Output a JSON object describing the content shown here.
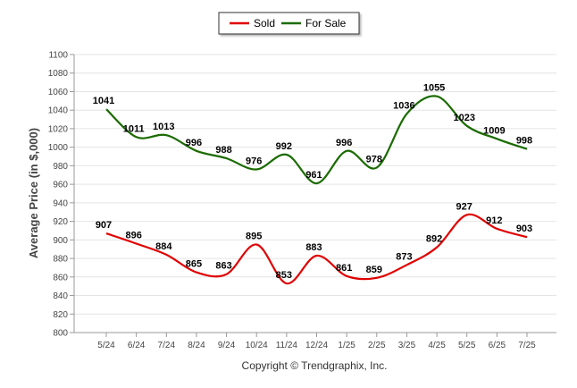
{
  "chart_data": {
    "type": "line",
    "ylabel": "Average Price (in $,000)",
    "ylim": [
      800,
      1100
    ],
    "ytick_step": 20,
    "categories": [
      "5/24",
      "6/24",
      "7/24",
      "8/24",
      "9/24",
      "10/24",
      "11/24",
      "12/24",
      "1/25",
      "2/25",
      "3/25",
      "4/25",
      "5/25",
      "6/25",
      "7/25"
    ],
    "series": [
      {
        "name": "Sold",
        "color": "#e00000",
        "values": [
          907,
          896,
          884,
          865,
          863,
          895,
          853,
          883,
          861,
          859,
          873,
          892,
          927,
          912,
          903
        ]
      },
      {
        "name": "For Sale",
        "color": "#1a6b00",
        "values": [
          1041,
          1011,
          1013,
          996,
          988,
          976,
          992,
          961,
          996,
          978,
          1036,
          1055,
          1023,
          1009,
          998
        ]
      }
    ],
    "legend_position": "top-center",
    "grid": true,
    "copyright": "Copyright © Trendgraphix, Inc."
  }
}
